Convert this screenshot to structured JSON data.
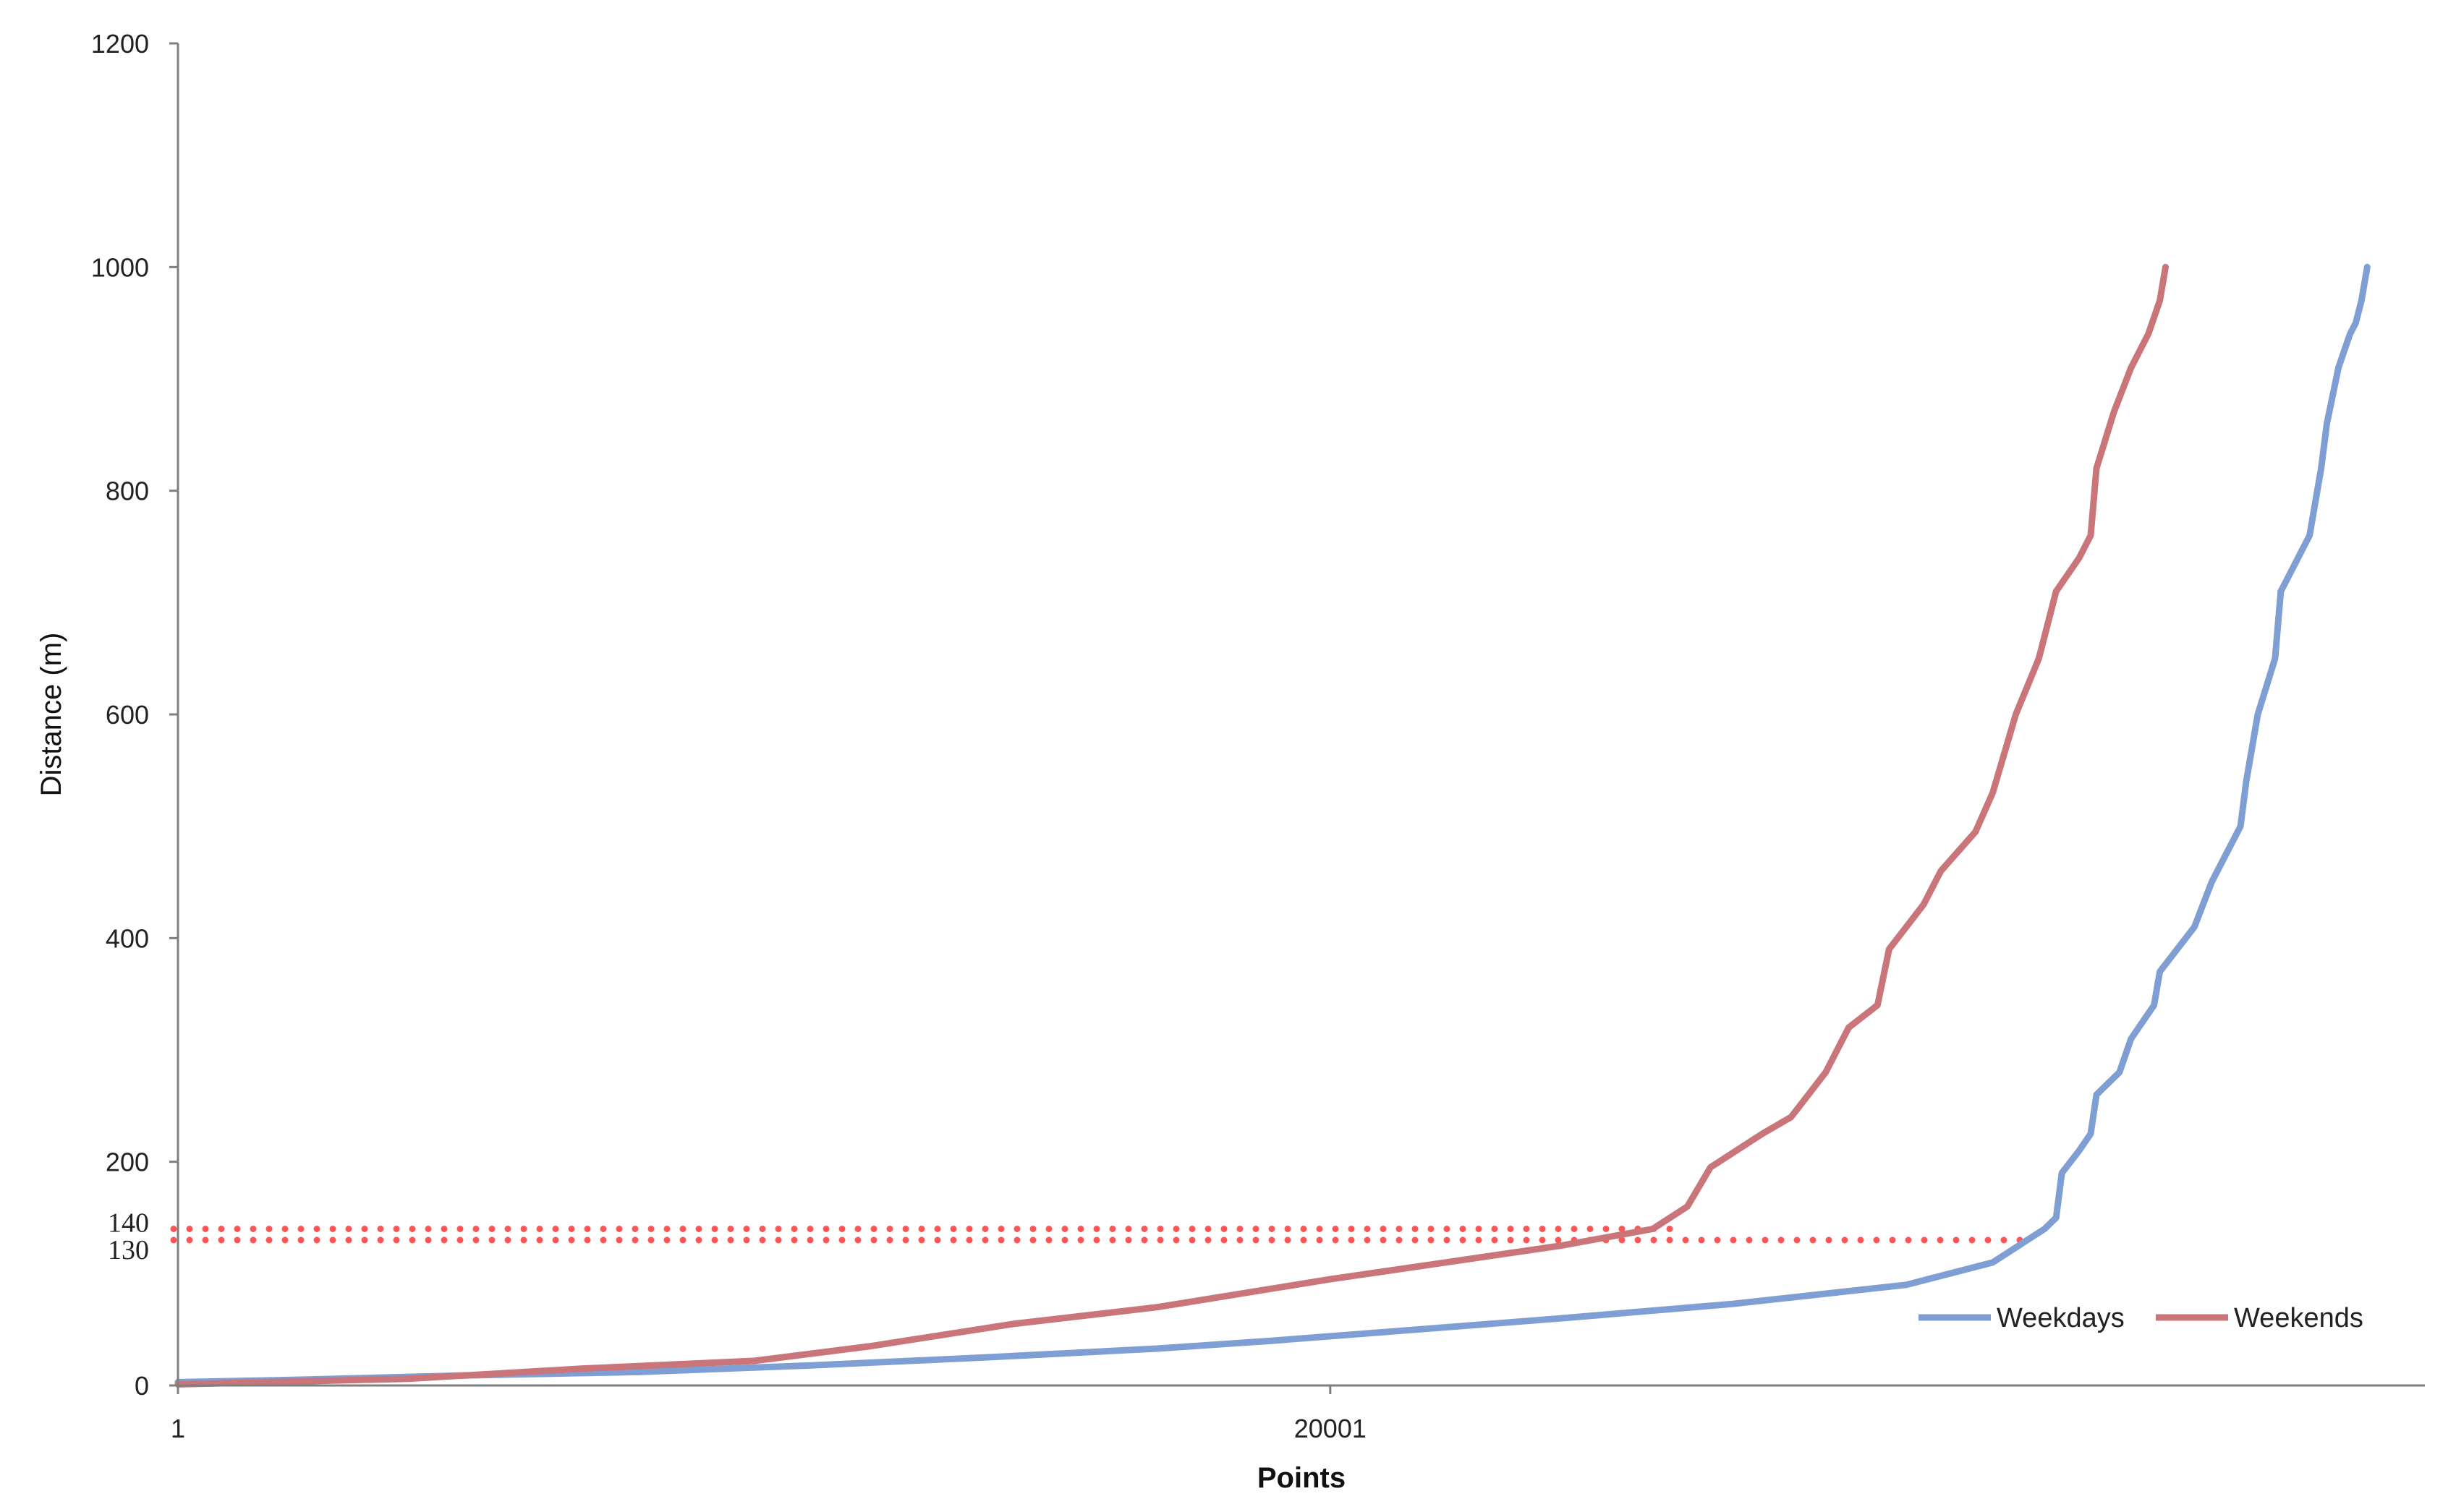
{
  "chart_data": {
    "type": "line",
    "title": "",
    "xlabel": "Points",
    "ylabel": "Distance (m)",
    "xlim": [
      1,
      39001
    ],
    "ylim": [
      0,
      1200
    ],
    "x_ticks": [
      1,
      20001
    ],
    "y_ticks": [
      0,
      200,
      400,
      600,
      800,
      1000,
      1200
    ],
    "y_extra_ticks": [
      130,
      140
    ],
    "grid": false,
    "legend_position": "bottom-right",
    "reference_lines": [
      {
        "y": 140,
        "x_end": 26100,
        "style": "dotted",
        "color": "#ff5555"
      },
      {
        "y": 130,
        "x_end": 32100,
        "style": "dotted",
        "color": "#ff5555"
      }
    ],
    "series": [
      {
        "name": "Weekdays",
        "color": "#7f9fd4",
        "points": [
          [
            1,
            3
          ],
          [
            2000,
            5
          ],
          [
            5000,
            9
          ],
          [
            8000,
            12
          ],
          [
            11000,
            18
          ],
          [
            14000,
            25
          ],
          [
            17000,
            33
          ],
          [
            19000,
            40
          ],
          [
            21000,
            48
          ],
          [
            24000,
            60
          ],
          [
            27000,
            73
          ],
          [
            30000,
            90
          ],
          [
            31500,
            110
          ],
          [
            32100,
            130
          ],
          [
            32400,
            140
          ],
          [
            32600,
            150
          ],
          [
            32700,
            190
          ],
          [
            33000,
            210
          ],
          [
            33200,
            225
          ],
          [
            33300,
            260
          ],
          [
            33700,
            280
          ],
          [
            33900,
            310
          ],
          [
            34300,
            340
          ],
          [
            34400,
            370
          ],
          [
            35000,
            410
          ],
          [
            35300,
            450
          ],
          [
            35800,
            500
          ],
          [
            35900,
            540
          ],
          [
            36100,
            600
          ],
          [
            36400,
            650
          ],
          [
            36500,
            710
          ],
          [
            37000,
            760
          ],
          [
            37200,
            820
          ],
          [
            37300,
            860
          ],
          [
            37500,
            910
          ],
          [
            37700,
            940
          ],
          [
            37800,
            950
          ],
          [
            37900,
            970
          ],
          [
            38000,
            1000
          ]
        ]
      },
      {
        "name": "Weekends",
        "color": "#c9757a",
        "points": [
          [
            1,
            1
          ],
          [
            4000,
            6
          ],
          [
            7000,
            15
          ],
          [
            10000,
            22
          ],
          [
            12000,
            35
          ],
          [
            14500,
            55
          ],
          [
            17000,
            70
          ],
          [
            20000,
            95
          ],
          [
            22000,
            110
          ],
          [
            24000,
            125
          ],
          [
            25600,
            140
          ],
          [
            26200,
            160
          ],
          [
            26600,
            195
          ],
          [
            27500,
            225
          ],
          [
            28000,
            240
          ],
          [
            28600,
            280
          ],
          [
            29000,
            320
          ],
          [
            29500,
            340
          ],
          [
            29700,
            390
          ],
          [
            30300,
            430
          ],
          [
            30600,
            460
          ],
          [
            31200,
            495
          ],
          [
            31500,
            530
          ],
          [
            31900,
            600
          ],
          [
            32300,
            650
          ],
          [
            32600,
            710
          ],
          [
            33000,
            740
          ],
          [
            33200,
            760
          ],
          [
            33300,
            820
          ],
          [
            33600,
            870
          ],
          [
            33900,
            910
          ],
          [
            34200,
            940
          ],
          [
            34400,
            970
          ],
          [
            34500,
            1000
          ]
        ]
      }
    ]
  }
}
